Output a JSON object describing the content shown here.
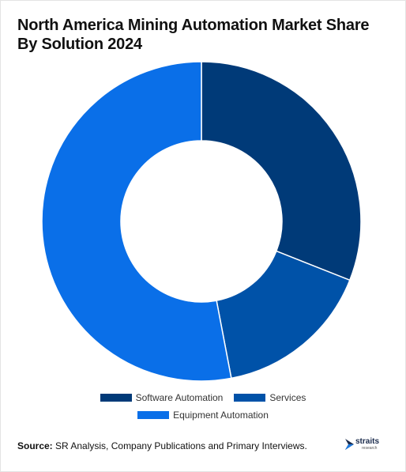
{
  "title": "North America Mining Automation Market Share By Solution 2024",
  "source_label": "Source:",
  "source_text": "SR Analysis, Company Publications and Primary Interviews.",
  "logo": {
    "text": "straits",
    "sub": "research"
  },
  "chart_data": {
    "type": "pie",
    "title": "North America Mining Automation Market Share By Solution 2024",
    "donut": true,
    "legend_position": "bottom",
    "categories": [
      "Software Automation",
      "Services",
      "Equipment Automation"
    ],
    "values": [
      31,
      16,
      53
    ],
    "colors": [
      "#003a78",
      "#0052a8",
      "#0a6fe8"
    ]
  }
}
